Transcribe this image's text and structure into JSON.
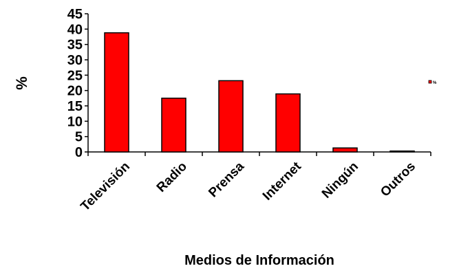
{
  "chart_data": {
    "type": "bar",
    "categories": [
      "Televisión",
      "Radio",
      "Prensa",
      "Internet",
      "Ningún",
      "Outros"
    ],
    "series": [
      {
        "name": "%",
        "color": "#ff0000",
        "values": [
          38.8,
          17.5,
          23.2,
          18.9,
          1.3,
          0.3
        ]
      }
    ],
    "y_label": "%",
    "x_label": "Medios de Información",
    "ylim": [
      0,
      45
    ],
    "yticks": [
      0,
      5,
      10,
      15,
      20,
      25,
      30,
      35,
      40,
      45
    ],
    "grid": false,
    "legend": "right"
  }
}
